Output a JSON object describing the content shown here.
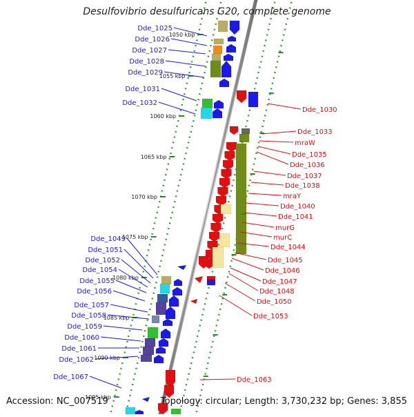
{
  "title": "Desulfovibrio desulfuricans G20, complete genome",
  "footer": {
    "accession": "Accession: NC_007519",
    "summary": "Topology: circular; Length: 3,730,232 bp; Genes: 3,855"
  },
  "colors": {
    "forward": "#1a1aee",
    "reverse": "#e01010",
    "axis": "#999999",
    "tick": "#2a8a2a"
  },
  "ticks": [
    "1050 kbp",
    "1055 kbp",
    "1060 kbp",
    "1065 kbp",
    "1070 kbp",
    "1075 kbp",
    "1080 kbp",
    "1085 kbp",
    "1090 kbp",
    "1095 kbp"
  ],
  "left_genes": [
    "Dde_1025",
    "Dde_1026",
    "Dde_1027",
    "Dde_1028",
    "Dde_1029",
    "Dde_1031",
    "Dde_1032",
    "Dde_1049",
    "Dde_1051",
    "Dde_1052",
    "Dde_1054",
    "Dde_1055",
    "Dde_1056",
    "Dde_1057",
    "Dde_1058",
    "Dde_1059",
    "Dde_1060",
    "Dde_1061",
    "Dde_1062",
    "Dde_1067"
  ],
  "right_genes": [
    "Dde_1030",
    "Dde_1033",
    "mraW",
    "Dde_1035",
    "Dde_1036",
    "Dde_1037",
    "Dde_1038",
    "mraY",
    "Dde_1040",
    "Dde_1041",
    "murG",
    "murC",
    "Dde_1044",
    "Dde_1045",
    "Dde_1046",
    "Dde_1047",
    "Dde_1048",
    "Dde_1050",
    "Dde_1053",
    "Dde_1063"
  ]
}
